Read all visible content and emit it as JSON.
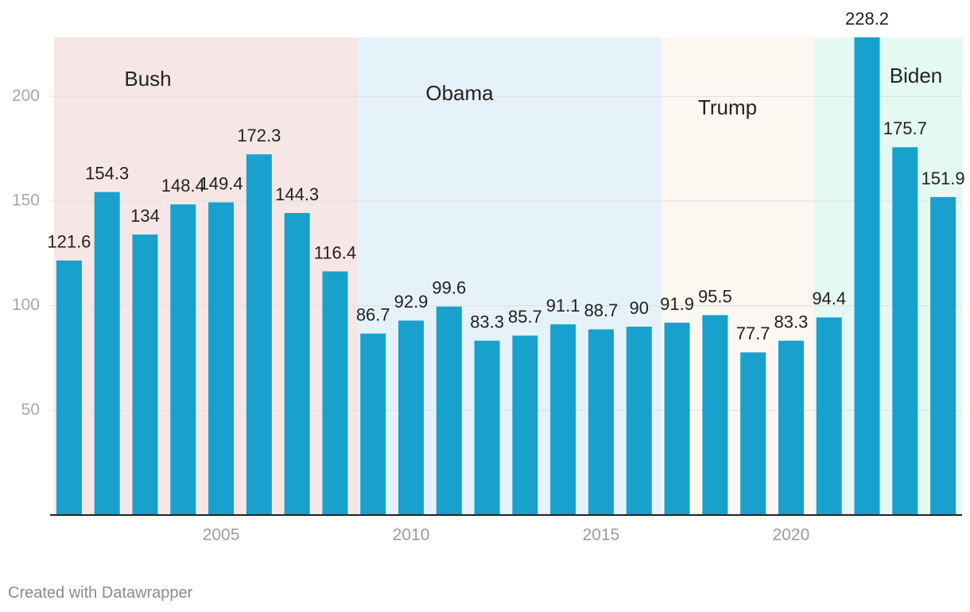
{
  "chart_data": {
    "type": "bar",
    "title": "",
    "xlabel": "",
    "ylabel": "",
    "ylim": [
      0,
      228.2
    ],
    "yticks": [
      50,
      100,
      150,
      200
    ],
    "xticks": [
      2005,
      2010,
      2015,
      2020
    ],
    "years": [
      2001,
      2002,
      2003,
      2004,
      2005,
      2006,
      2007,
      2008,
      2009,
      2010,
      2011,
      2012,
      2013,
      2014,
      2015,
      2016,
      2017,
      2018,
      2019,
      2020,
      2021,
      2022,
      2023,
      2024
    ],
    "values": [
      121.6,
      154.3,
      134,
      148.4,
      149.4,
      172.3,
      144.3,
      116.4,
      86.7,
      92.9,
      99.6,
      83.3,
      85.7,
      91.1,
      88.7,
      90,
      91.9,
      95.5,
      77.7,
      83.3,
      94.4,
      228.2,
      175.7,
      151.9
    ],
    "value_labels": [
      "121.6",
      "154.3",
      "134",
      "148.4",
      "149.4",
      "172.3",
      "144.3",
      "116.4",
      "86.7",
      "92.9",
      "99.6",
      "83.3",
      "85.7",
      "91.1",
      "88.7",
      "90",
      "91.9",
      "95.5",
      "77.7",
      "83.3",
      "94.4",
      "228.2",
      "175.7",
      "151.9"
    ],
    "bar_color": "#18a1cd",
    "periods": [
      {
        "name": "Bush",
        "start": 2000.6,
        "end": 2008.6,
        "color": "#f6e7e6"
      },
      {
        "name": "Obama",
        "start": 2008.6,
        "end": 2016.6,
        "color": "#e5f2f9"
      },
      {
        "name": "Trump",
        "start": 2016.6,
        "end": 2020.6,
        "color": "#fcf8f1"
      },
      {
        "name": "Biden",
        "start": 2020.6,
        "end": 2024.6,
        "color": "#e5f9f3"
      }
    ]
  },
  "footer": {
    "credit": "Created with Datawrapper"
  }
}
